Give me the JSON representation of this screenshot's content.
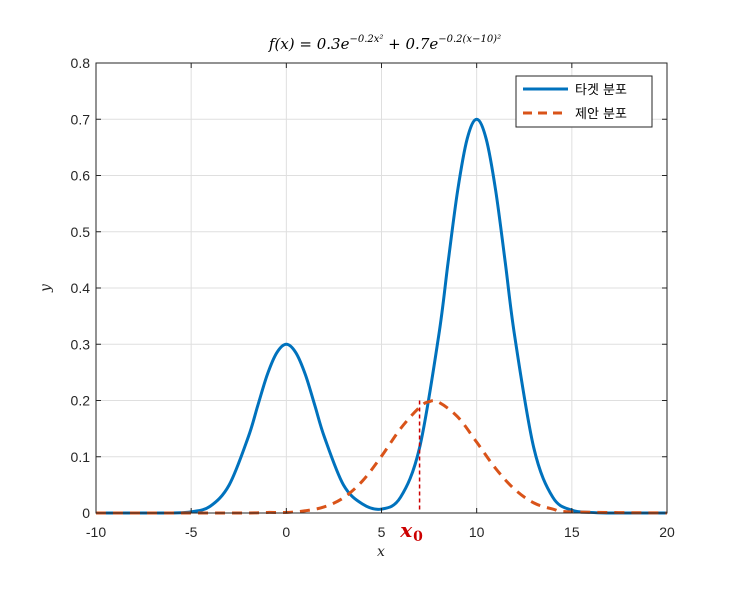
{
  "chart_data": {
    "type": "line",
    "title": "f(x) = 0.3e^{-0.2x²} + 0.7e^{-0.2(x-10)²}",
    "title_parts": {
      "lhs": "f(x) = 0.3e",
      "exp1": "−0.2x²",
      "mid": " + 0.7e",
      "exp2": "−0.2(x−10)²"
    },
    "xlabel": "x",
    "ylabel": "y",
    "xlim": [
      -10,
      20
    ],
    "ylim": [
      0,
      0.8
    ],
    "xticks": [
      -10,
      -5,
      0,
      5,
      10,
      15,
      20
    ],
    "xtick_labels": [
      "-10",
      "-5",
      "0",
      "5",
      "10",
      "15",
      "20"
    ],
    "yticks": [
      0,
      0.1,
      0.2,
      0.3,
      0.4,
      0.5,
      0.6,
      0.7,
      0.8
    ],
    "ytick_labels": [
      "0",
      "0.1",
      "0.2",
      "0.3",
      "0.4",
      "0.5",
      "0.6",
      "0.7",
      "0.8"
    ],
    "grid": true,
    "legend_position": "top-right",
    "series": [
      {
        "name": "타겟 분포",
        "style": "solid",
        "color": "#0072BD",
        "x": [
          -10,
          -9,
          -8,
          -7,
          -6,
          -5,
          -4,
          -3,
          -2,
          -1.5,
          -1,
          -0.5,
          0,
          0.5,
          1,
          1.5,
          2,
          3,
          4,
          5,
          6,
          7,
          8,
          8.5,
          9,
          9.5,
          10,
          10.5,
          11,
          11.5,
          12,
          13,
          14,
          15,
          16,
          17,
          18,
          19,
          20
        ],
        "y": [
          0,
          0,
          0,
          0,
          0,
          0.002,
          0.012,
          0.05,
          0.135,
          0.191,
          0.246,
          0.285,
          0.3,
          0.285,
          0.246,
          0.191,
          0.135,
          0.05,
          0.016,
          0.007,
          0.028,
          0.116,
          0.314,
          0.446,
          0.573,
          0.665,
          0.7,
          0.665,
          0.573,
          0.446,
          0.314,
          0.116,
          0.028,
          0.005,
          0.001,
          0,
          0,
          0,
          0
        ]
      },
      {
        "name": "제안 분포",
        "style": "dashed",
        "color": "#D95319",
        "x": [
          -10,
          -5,
          -2,
          -1,
          0,
          1,
          2,
          3,
          4,
          5,
          6,
          7,
          7.5,
          8,
          9,
          10,
          11,
          12,
          13,
          14,
          15,
          20
        ],
        "y": [
          0,
          0,
          0,
          0.001,
          0.001,
          0.004,
          0.011,
          0.027,
          0.057,
          0.101,
          0.15,
          0.188,
          0.198,
          0.197,
          0.171,
          0.126,
          0.079,
          0.042,
          0.018,
          0.007,
          0.002,
          0
        ]
      }
    ],
    "annotation": {
      "label": "x",
      "subscript": "0",
      "x": 7.0,
      "y": 0.2,
      "color": "#CC0000"
    }
  },
  "colors": {
    "axis": "#262626",
    "grid": "#dfdfdf",
    "series1": "#0072BD",
    "series2": "#D95319",
    "annotation": "#CC0000"
  }
}
